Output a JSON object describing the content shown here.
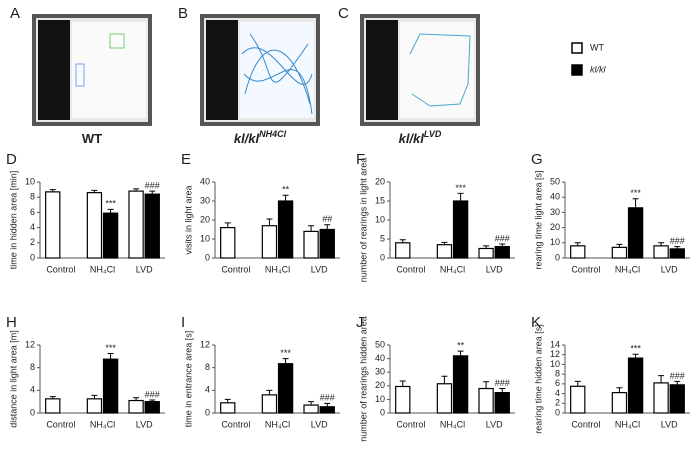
{
  "photos": [
    {
      "panel": "A",
      "label": "WT"
    },
    {
      "panel": "B",
      "label": "kl/kl",
      "sup": "NH4Cl"
    },
    {
      "panel": "C",
      "label": "kl/kl",
      "sup": "LVD"
    }
  ],
  "legend": [
    {
      "name": "WT",
      "color": "#ffffff"
    },
    {
      "name": "kl/kl",
      "color": "#000000"
    }
  ],
  "chart_data": [
    {
      "type": "bar",
      "panel": "D",
      "y_label": "time in hidden area [min]",
      "categories": [
        "Control",
        "NH₄Cl",
        "LVD"
      ],
      "ylim": [
        0,
        10
      ],
      "yticks": [
        0,
        2,
        4,
        6,
        8,
        10
      ],
      "series": [
        {
          "values": [
            8.7,
            8.6,
            8.8
          ],
          "errors": [
            0.3,
            0.3,
            0.3
          ]
        },
        {
          "values": [
            null,
            5.9,
            8.4
          ],
          "errors": [
            null,
            0.5,
            0.4
          ],
          "value_labels": [
            null,
            "***",
            "###"
          ]
        }
      ]
    },
    {
      "type": "bar",
      "panel": "E",
      "y_label": "visits in light area",
      "categories": [
        "Control",
        "NH₄Cl",
        "LVD"
      ],
      "ylim": [
        0,
        40
      ],
      "yticks": [
        0,
        10,
        20,
        30,
        40
      ],
      "series": [
        {
          "values": [
            16,
            17,
            14
          ],
          "errors": [
            2.5,
            3.5,
            3
          ]
        },
        {
          "values": [
            null,
            30,
            15
          ],
          "errors": [
            null,
            3,
            2.5
          ],
          "value_labels": [
            null,
            "**",
            "##"
          ]
        }
      ]
    },
    {
      "type": "bar",
      "panel": "F",
      "y_label": "number of rearings in light area",
      "categories": [
        "Control",
        "NH₄Cl",
        "LVD"
      ],
      "ylim": [
        0,
        20
      ],
      "yticks": [
        0,
        5,
        10,
        15,
        20
      ],
      "series": [
        {
          "values": [
            4,
            3.5,
            2.5
          ],
          "errors": [
            0.8,
            0.6,
            0.7
          ]
        },
        {
          "values": [
            null,
            15,
            3
          ],
          "errors": [
            null,
            2,
            0.7
          ],
          "value_labels": [
            null,
            "***",
            "###"
          ]
        }
      ]
    },
    {
      "type": "bar",
      "panel": "G",
      "y_label": "rearing time light area [s]",
      "categories": [
        "Control",
        "NH₄Cl",
        "LVD"
      ],
      "ylim": [
        0,
        50
      ],
      "yticks": [
        0,
        10,
        20,
        30,
        40,
        50
      ],
      "series": [
        {
          "values": [
            8,
            7,
            8
          ],
          "errors": [
            2,
            2,
            2
          ]
        },
        {
          "values": [
            null,
            33,
            6
          ],
          "errors": [
            null,
            6,
            1.5
          ],
          "value_labels": [
            null,
            "***",
            "###"
          ]
        }
      ]
    },
    {
      "type": "bar",
      "panel": "H",
      "y_label": "distance in light area [m]",
      "categories": [
        "Control",
        "NH₄Cl",
        "LVD"
      ],
      "ylim": [
        0,
        12
      ],
      "yticks": [
        0,
        4,
        8,
        12
      ],
      "series": [
        {
          "values": [
            2.5,
            2.5,
            2.2
          ],
          "errors": [
            0.4,
            0.6,
            0.5
          ]
        },
        {
          "values": [
            null,
            9.5,
            2
          ],
          "errors": [
            null,
            1,
            0.3
          ],
          "value_labels": [
            null,
            "***",
            "###"
          ]
        }
      ]
    },
    {
      "type": "bar",
      "panel": "I",
      "y_label": "time in entrance area [s]",
      "categories": [
        "Control",
        "NH₄Cl",
        "LVD"
      ],
      "ylim": [
        0,
        12
      ],
      "yticks": [
        0,
        4,
        8,
        12
      ],
      "series": [
        {
          "values": [
            1.8,
            3.2,
            1.4
          ],
          "errors": [
            0.6,
            0.8,
            0.6
          ]
        },
        {
          "values": [
            null,
            8.7,
            1.1
          ],
          "errors": [
            null,
            0.9,
            0.6
          ],
          "value_labels": [
            null,
            "***",
            "###"
          ]
        }
      ]
    },
    {
      "type": "bar",
      "panel": "J",
      "y_label": "number of rearings hidden area",
      "categories": [
        "Control",
        "NH₄Cl",
        "LVD"
      ],
      "ylim": [
        0,
        50
      ],
      "yticks": [
        0,
        10,
        20,
        30,
        40,
        50
      ],
      "series": [
        {
          "values": [
            19.5,
            21.5,
            18
          ],
          "errors": [
            4,
            5.5,
            5
          ]
        },
        {
          "values": [
            null,
            42,
            15
          ],
          "errors": [
            null,
            3.5,
            3
          ],
          "value_labels": [
            null,
            "**",
            "###"
          ]
        }
      ]
    },
    {
      "type": "bar",
      "panel": "K",
      "y_label": "rearing time hidden area [s]",
      "categories": [
        "Control",
        "NH₄Cl",
        "LVD"
      ],
      "ylim": [
        0,
        14
      ],
      "yticks": [
        0,
        2,
        4,
        6,
        8,
        10,
        12,
        14
      ],
      "series": [
        {
          "values": [
            5.5,
            4.2,
            6.2
          ],
          "errors": [
            1,
            1,
            1.5
          ]
        },
        {
          "values": [
            null,
            11.3,
            5.8
          ],
          "errors": [
            null,
            0.8,
            0.7
          ],
          "value_labels": [
            null,
            "***",
            "###"
          ]
        }
      ]
    }
  ]
}
